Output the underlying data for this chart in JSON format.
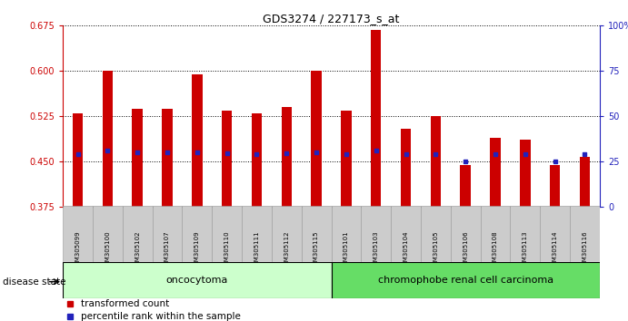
{
  "title": "GDS3274 / 227173_s_at",
  "samples": [
    "GSM305099",
    "GSM305100",
    "GSM305102",
    "GSM305107",
    "GSM305109",
    "GSM305110",
    "GSM305111",
    "GSM305112",
    "GSM305115",
    "GSM305101",
    "GSM305103",
    "GSM305104",
    "GSM305105",
    "GSM305106",
    "GSM305108",
    "GSM305113",
    "GSM305114",
    "GSM305116"
  ],
  "bar_values": [
    0.53,
    0.6,
    0.538,
    0.537,
    0.595,
    0.535,
    0.53,
    0.54,
    0.6,
    0.535,
    0.668,
    0.505,
    0.525,
    0.445,
    0.49,
    0.487,
    0.445,
    0.458
  ],
  "percentile_y": [
    0.463,
    0.468,
    0.465,
    0.466,
    0.465,
    0.464,
    0.463,
    0.464,
    0.465,
    0.463,
    0.469,
    0.463,
    0.462,
    0.451,
    0.463,
    0.462,
    0.451,
    0.463
  ],
  "n_onco": 9,
  "n_chromo": 9,
  "y_min": 0.375,
  "y_max": 0.675,
  "y_ticks": [
    0.375,
    0.45,
    0.525,
    0.6,
    0.675
  ],
  "right_y_ticks_pct": [
    0,
    25,
    50,
    75,
    100
  ],
  "right_y_tick_labels": [
    "0",
    "25",
    "50",
    "75",
    "100%"
  ],
  "bar_color": "#CC0000",
  "blue_color": "#2222BB",
  "onco_bg": "#CCFFCC",
  "chromo_bg": "#66DD66",
  "bar_width": 0.35,
  "baseline": 0.375
}
